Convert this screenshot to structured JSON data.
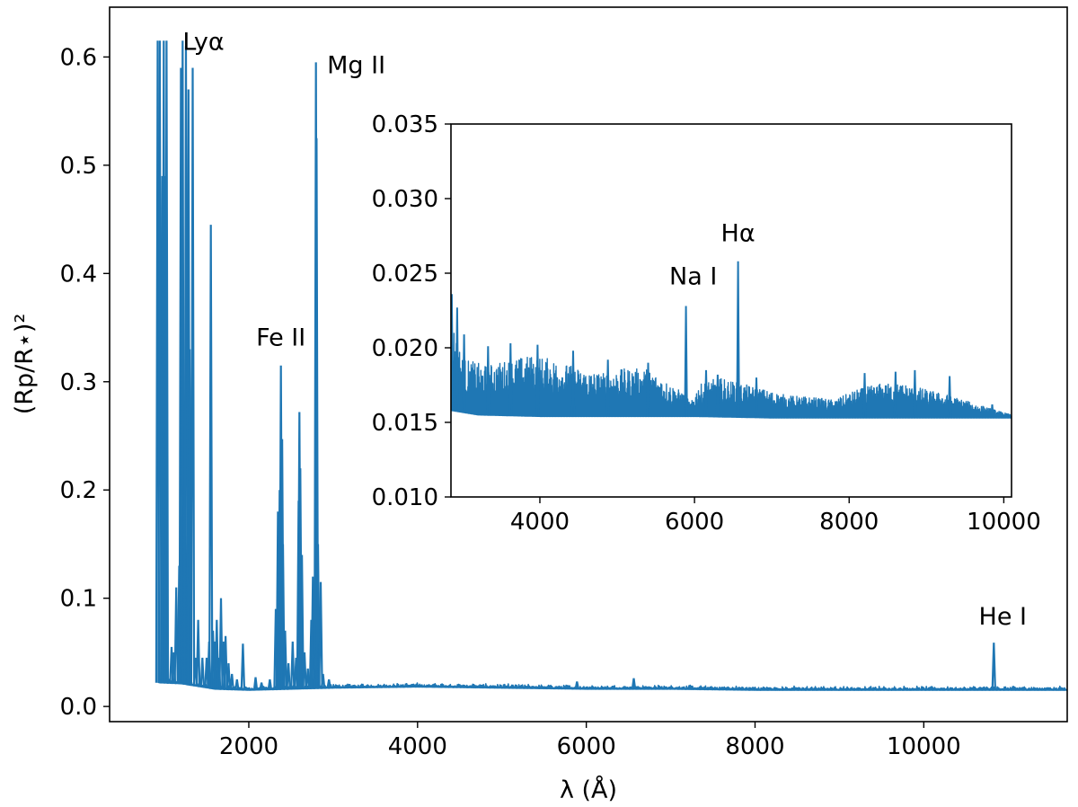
{
  "chart_data": [
    {
      "type": "line",
      "panel": "main",
      "xlabel": "λ (Å)",
      "ylabel": "(Rp/R⋆)²",
      "xlim": [
        350,
        11700
      ],
      "ylim": [
        -0.014,
        0.646
      ],
      "xticks": [
        2000,
        4000,
        6000,
        8000,
        10000
      ],
      "xtick_labels": [
        "2000",
        "4000",
        "6000",
        "8000",
        "10000"
      ],
      "yticks": [
        0.0,
        0.1,
        0.2,
        0.3,
        0.4,
        0.5,
        0.6
      ],
      "ytick_labels": [
        "0.0",
        "0.1",
        "0.2",
        "0.3",
        "0.4",
        "0.5",
        "0.6"
      ],
      "grid": false,
      "legend": "none",
      "series_color": "#1f77b4",
      "baseline": [
        [
          912,
          0.022
        ],
        [
          1200,
          0.021
        ],
        [
          1600,
          0.016
        ],
        [
          2000,
          0.015
        ],
        [
          3000,
          0.017
        ],
        [
          4000,
          0.018
        ],
        [
          5000,
          0.017
        ],
        [
          6000,
          0.016
        ],
        [
          7000,
          0.016
        ],
        [
          8000,
          0.015
        ],
        [
          9000,
          0.015
        ],
        [
          10000,
          0.015
        ],
        [
          11000,
          0.015
        ]
      ],
      "lines": [
        {
          "x": 920,
          "y": 0.615
        },
        {
          "x": 945,
          "y": 0.615
        },
        {
          "x": 975,
          "y": 0.49
        },
        {
          "x": 992,
          "y": 0.615
        },
        {
          "x": 1010,
          "y": 0.49
        },
        {
          "x": 1025,
          "y": 0.615
        },
        {
          "x": 1085,
          "y": 0.055
        },
        {
          "x": 1110,
          "y": 0.05
        },
        {
          "x": 1140,
          "y": 0.11
        },
        {
          "x": 1175,
          "y": 0.13
        },
        {
          "x": 1195,
          "y": 0.59
        },
        {
          "x": 1216,
          "y": 0.615
        },
        {
          "x": 1240,
          "y": 0.26
        },
        {
          "x": 1255,
          "y": 0.61
        },
        {
          "x": 1285,
          "y": 0.57
        },
        {
          "x": 1300,
          "y": 0.33
        },
        {
          "x": 1335,
          "y": 0.59
        },
        {
          "x": 1370,
          "y": 0.045
        },
        {
          "x": 1400,
          "y": 0.08
        },
        {
          "x": 1450,
          "y": 0.045
        },
        {
          "x": 1500,
          "y": 0.045
        },
        {
          "x": 1530,
          "y": 0.06
        },
        {
          "x": 1550,
          "y": 0.445
        },
        {
          "x": 1575,
          "y": 0.07
        },
        {
          "x": 1600,
          "y": 0.06
        },
        {
          "x": 1620,
          "y": 0.08
        },
        {
          "x": 1645,
          "y": 0.045
        },
        {
          "x": 1670,
          "y": 0.1
        },
        {
          "x": 1700,
          "y": 0.06
        },
        {
          "x": 1725,
          "y": 0.065
        },
        {
          "x": 1760,
          "y": 0.04
        },
        {
          "x": 1800,
          "y": 0.03
        },
        {
          "x": 1860,
          "y": 0.025
        },
        {
          "x": 1930,
          "y": 0.058
        },
        {
          "x": 2080,
          "y": 0.027
        },
        {
          "x": 2150,
          "y": 0.022
        },
        {
          "x": 2250,
          "y": 0.025
        },
        {
          "x": 2320,
          "y": 0.09
        },
        {
          "x": 2345,
          "y": 0.18
        },
        {
          "x": 2365,
          "y": 0.2
        },
        {
          "x": 2380,
          "y": 0.315
        },
        {
          "x": 2395,
          "y": 0.247
        },
        {
          "x": 2405,
          "y": 0.15
        },
        {
          "x": 2430,
          "y": 0.07
        },
        {
          "x": 2470,
          "y": 0.04
        },
        {
          "x": 2520,
          "y": 0.06
        },
        {
          "x": 2560,
          "y": 0.045
        },
        {
          "x": 2590,
          "y": 0.19
        },
        {
          "x": 2600,
          "y": 0.272
        },
        {
          "x": 2610,
          "y": 0.22
        },
        {
          "x": 2630,
          "y": 0.14
        },
        {
          "x": 2660,
          "y": 0.05
        },
        {
          "x": 2700,
          "y": 0.035
        },
        {
          "x": 2740,
          "y": 0.08
        },
        {
          "x": 2760,
          "y": 0.12
        },
        {
          "x": 2796,
          "y": 0.595
        },
        {
          "x": 2803,
          "y": 0.525
        },
        {
          "x": 2820,
          "y": 0.15
        },
        {
          "x": 2852,
          "y": 0.115
        },
        {
          "x": 2880,
          "y": 0.03
        },
        {
          "x": 2950,
          "y": 0.025
        },
        {
          "x": 5890,
          "y": 0.023
        },
        {
          "x": 6563,
          "y": 0.026
        },
        {
          "x": 10830,
          "y": 0.059
        }
      ],
      "annotations": [
        {
          "text": "Lyα",
          "x": 1216,
          "y": 0.615
        },
        {
          "text": "Mg II",
          "x": 2800,
          "y": 0.595
        },
        {
          "text": "Fe II",
          "x": 2380,
          "y": 0.315
        },
        {
          "text": "He I",
          "x": 10830,
          "y": 0.059
        }
      ]
    },
    {
      "type": "line",
      "panel": "inset",
      "xlabel": "",
      "ylabel": "",
      "xlim": [
        2850,
        10100
      ],
      "ylim": [
        0.01,
        0.035
      ],
      "xticks": [
        4000,
        6000,
        8000,
        10000
      ],
      "xtick_labels": [
        "4000",
        "6000",
        "8000",
        "10000"
      ],
      "yticks": [
        0.01,
        0.015,
        0.02,
        0.025,
        0.03,
        0.035
      ],
      "ytick_labels": [
        "0.010",
        "0.015",
        "0.020",
        "0.025",
        "0.030",
        "0.035"
      ],
      "grid": false,
      "legend": "none",
      "series_color": "#1f77b4",
      "baseline": [
        [
          2850,
          0.0158
        ],
        [
          3200,
          0.0155
        ],
        [
          4000,
          0.0154
        ],
        [
          5000,
          0.0154
        ],
        [
          6000,
          0.0154
        ],
        [
          7000,
          0.0153
        ],
        [
          8000,
          0.0153
        ],
        [
          9000,
          0.0153
        ],
        [
          10100,
          0.0153
        ]
      ],
      "envelope": [
        [
          2850,
          0.0225
        ],
        [
          2900,
          0.021
        ],
        [
          3000,
          0.0193
        ],
        [
          3300,
          0.0188
        ],
        [
          3600,
          0.0192
        ],
        [
          3900,
          0.0195
        ],
        [
          4200,
          0.0192
        ],
        [
          4500,
          0.0186
        ],
        [
          4800,
          0.0183
        ],
        [
          5100,
          0.0186
        ],
        [
          5400,
          0.0186
        ],
        [
          5700,
          0.0175
        ],
        [
          5850,
          0.017
        ],
        [
          5950,
          0.0163
        ],
        [
          6050,
          0.0175
        ],
        [
          6300,
          0.018
        ],
        [
          6600,
          0.0176
        ],
        [
          6900,
          0.0172
        ],
        [
          7200,
          0.0168
        ],
        [
          7500,
          0.0167
        ],
        [
          7800,
          0.0165
        ],
        [
          8100,
          0.0172
        ],
        [
          8400,
          0.0176
        ],
        [
          8700,
          0.0176
        ],
        [
          9000,
          0.0172
        ],
        [
          9300,
          0.0168
        ],
        [
          9600,
          0.0163
        ],
        [
          9900,
          0.0158
        ],
        [
          10100,
          0.0155
        ]
      ],
      "lines": [
        {
          "x": 2860,
          "y": 0.0236
        },
        {
          "x": 2930,
          "y": 0.0227
        },
        {
          "x": 3020,
          "y": 0.0209
        },
        {
          "x": 3330,
          "y": 0.0201
        },
        {
          "x": 3620,
          "y": 0.0203
        },
        {
          "x": 3970,
          "y": 0.0202
        },
        {
          "x": 4430,
          "y": 0.0198
        },
        {
          "x": 4880,
          "y": 0.0192
        },
        {
          "x": 5400,
          "y": 0.019
        },
        {
          "x": 5890,
          "y": 0.0228
        },
        {
          "x": 6150,
          "y": 0.0185
        },
        {
          "x": 6300,
          "y": 0.0182
        },
        {
          "x": 6563,
          "y": 0.0258
        },
        {
          "x": 6800,
          "y": 0.018
        },
        {
          "x": 8200,
          "y": 0.0183
        },
        {
          "x": 8600,
          "y": 0.0184
        },
        {
          "x": 8850,
          "y": 0.0185
        },
        {
          "x": 9300,
          "y": 0.0181
        },
        {
          "x": 9850,
          "y": 0.0162
        }
      ],
      "annotations": [
        {
          "text": "Na I",
          "x": 5890,
          "y": 0.0228
        },
        {
          "text": "Hα",
          "x": 6563,
          "y": 0.0258
        }
      ]
    }
  ]
}
